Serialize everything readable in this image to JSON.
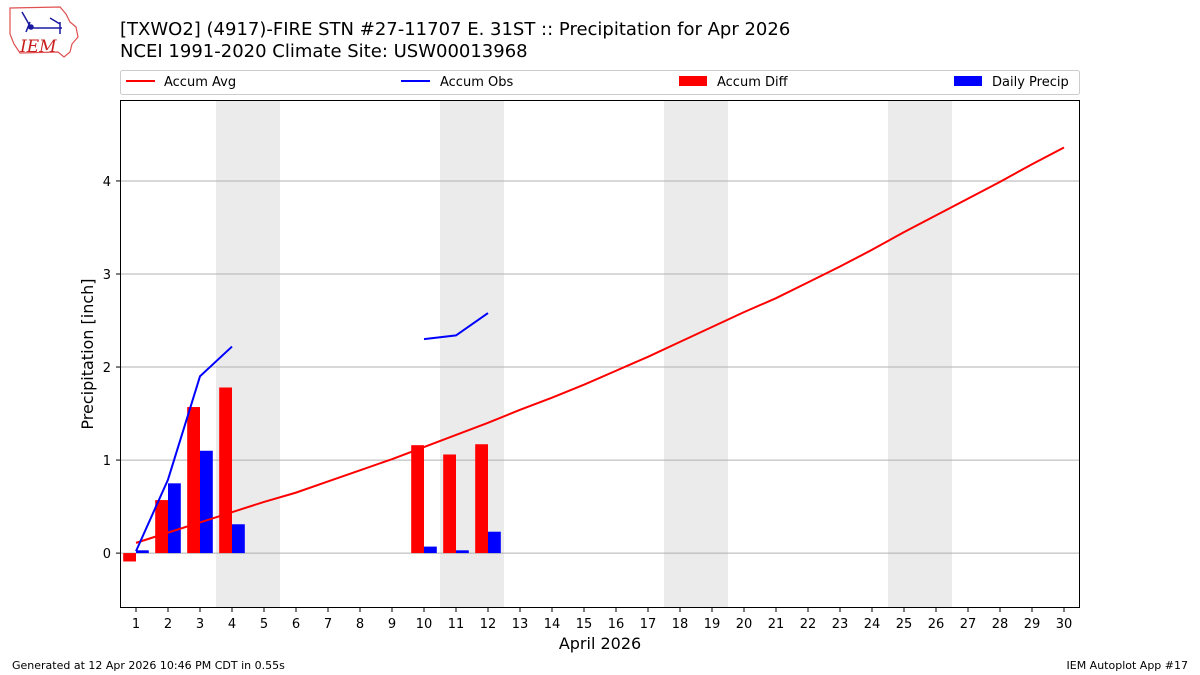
{
  "title": {
    "line1": "[TXWO2] (4917)-FIRE STN #27-11707 E. 31ST :: Precipitation for Apr 2026",
    "line2": "NCEI 1991-2020 Climate Site: USW00013968"
  },
  "logo": {
    "text": "IEM"
  },
  "footer": {
    "left": "Generated at 12 Apr 2026 10:46 PM CDT in 0.55s",
    "right": "IEM Autoplot App #17"
  },
  "colors": {
    "avg": "#ff0000",
    "obs": "#0000ff",
    "diff": "#ff0000",
    "daily": "#0000ff",
    "weekend": "#ebebeb",
    "grid": "#b0b0b0"
  },
  "chart_data": {
    "type": "bar",
    "xlabel": "April 2026",
    "ylabel": "Precipitation [inch]",
    "xlim": [
      0.5,
      30.5
    ],
    "ylim": [
      -0.59,
      4.87
    ],
    "yticks": [
      0,
      1,
      2,
      3,
      4
    ],
    "categories": [
      "1",
      "2",
      "3",
      "4",
      "5",
      "6",
      "7",
      "8",
      "9",
      "10",
      "11",
      "12",
      "13",
      "14",
      "15",
      "16",
      "17",
      "18",
      "19",
      "20",
      "21",
      "22",
      "23",
      "24",
      "25",
      "26",
      "27",
      "28",
      "29",
      "30"
    ],
    "weekend_days": [
      4,
      5,
      11,
      12,
      18,
      19,
      25,
      26
    ],
    "legend": [
      "Accum Avg",
      "Accum Obs",
      "Accum Diff",
      "Daily Precip"
    ],
    "series": [
      {
        "name": "Accum Avg",
        "kind": "line",
        "x": [
          1,
          2,
          3,
          4,
          5,
          6,
          7,
          8,
          9,
          10,
          11,
          12,
          13,
          14,
          15,
          16,
          17,
          18,
          19,
          20,
          21,
          22,
          23,
          24,
          25,
          26,
          27,
          28,
          29,
          30
        ],
        "values": [
          0.11,
          0.22,
          0.33,
          0.44,
          0.55,
          0.65,
          0.77,
          0.89,
          1.01,
          1.14,
          1.27,
          1.4,
          1.54,
          1.67,
          1.81,
          1.96,
          2.11,
          2.27,
          2.43,
          2.59,
          2.74,
          2.91,
          3.08,
          3.26,
          3.45,
          3.63,
          3.81,
          3.99,
          4.18,
          4.36
        ]
      },
      {
        "name": "Accum Obs",
        "kind": "line",
        "segments": [
          {
            "x": [
              1,
              2,
              3,
              4
            ],
            "values": [
              0.02,
              0.79,
              1.9,
              2.22
            ]
          },
          {
            "x": [
              10,
              11,
              12
            ],
            "values": [
              2.3,
              2.34,
              2.58
            ]
          }
        ]
      },
      {
        "name": "Accum Diff",
        "kind": "bar",
        "x": [
          1,
          2,
          3,
          4,
          10,
          11,
          12
        ],
        "values": [
          -0.09,
          0.57,
          1.57,
          1.78,
          1.16,
          1.06,
          1.17
        ]
      },
      {
        "name": "Daily Precip",
        "kind": "bar",
        "x": [
          1,
          2,
          3,
          4,
          10,
          11,
          12
        ],
        "values": [
          0.03,
          0.75,
          1.1,
          0.31,
          0.07,
          0.03,
          0.23
        ]
      }
    ]
  }
}
